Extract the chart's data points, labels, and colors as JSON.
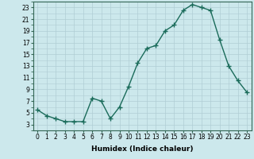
{
  "x": [
    0,
    1,
    2,
    3,
    4,
    5,
    6,
    7,
    8,
    9,
    10,
    11,
    12,
    13,
    14,
    15,
    16,
    17,
    18,
    19,
    20,
    21,
    22,
    23
  ],
  "y": [
    5.5,
    4.5,
    4.0,
    3.5,
    3.5,
    3.5,
    7.5,
    7.0,
    4.0,
    6.0,
    9.5,
    13.5,
    16.0,
    16.5,
    19.0,
    20.0,
    22.5,
    23.5,
    23.0,
    22.5,
    17.5,
    13.0,
    10.5,
    8.5
  ],
  "line_color": "#1a6b5a",
  "marker": "+",
  "markersize": 4,
  "linewidth": 1.0,
  "bg_color": "#cce8ec",
  "grid_major_color": "#b0cdd4",
  "grid_minor_color": "#b0cdd4",
  "xlabel": "Humidex (Indice chaleur)",
  "xlim": [
    -0.5,
    23.5
  ],
  "ylim": [
    2,
    24
  ],
  "yticks": [
    3,
    5,
    7,
    9,
    11,
    13,
    15,
    17,
    19,
    21,
    23
  ],
  "xticks": [
    0,
    1,
    2,
    3,
    4,
    5,
    6,
    7,
    8,
    9,
    10,
    11,
    12,
    13,
    14,
    15,
    16,
    17,
    18,
    19,
    20,
    21,
    22,
    23
  ],
  "xlabel_fontsize": 6.5,
  "tick_fontsize": 5.5
}
